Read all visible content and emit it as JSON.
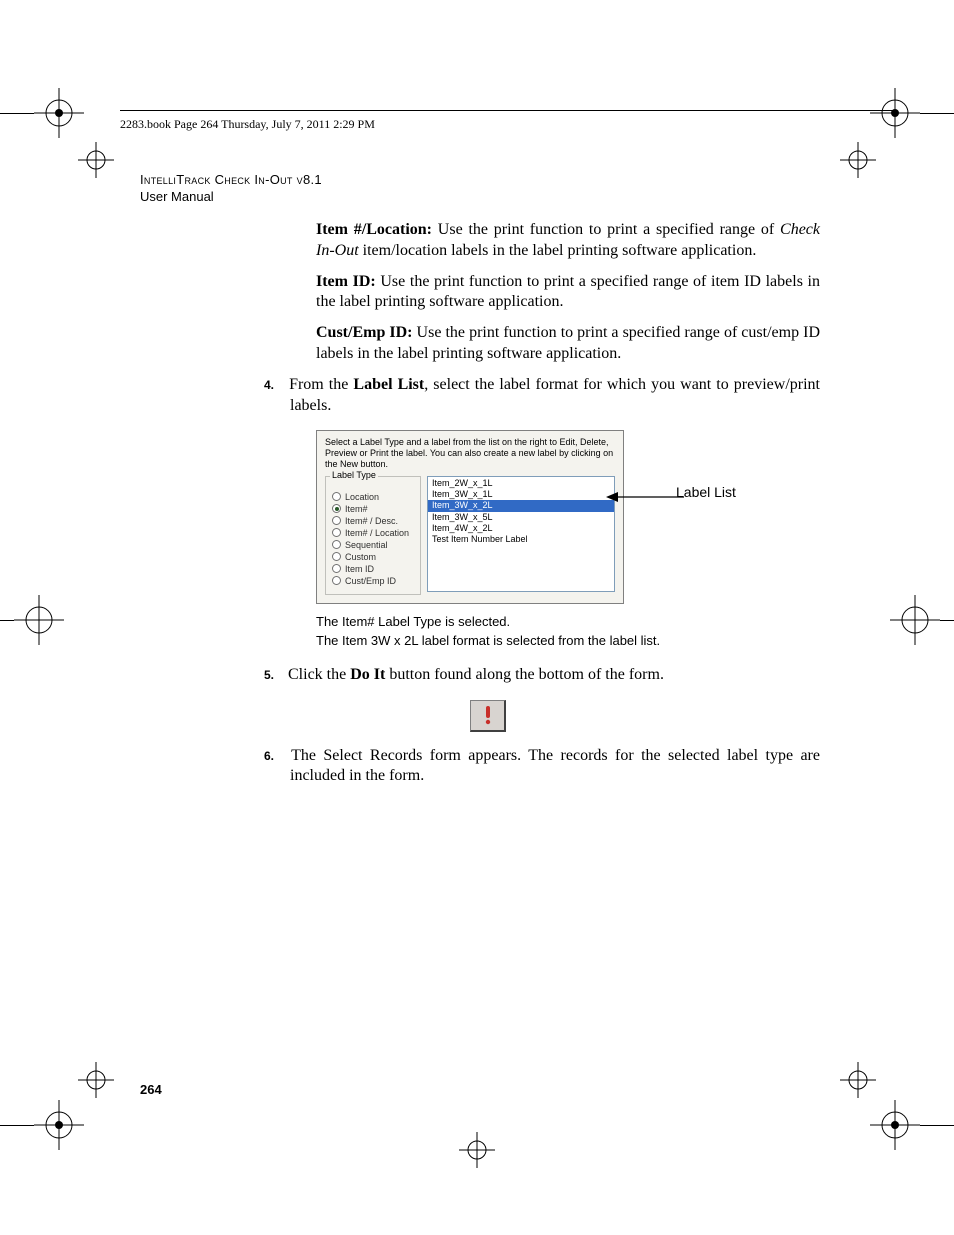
{
  "header": {
    "text": "2283.book  Page 264  Thursday, July 7, 2011  2:29 PM"
  },
  "doc": {
    "title_line1": "IntelliTrack Check In-Out v8.1",
    "title_line2": "User Manual"
  },
  "para1": {
    "lead": "Item #/Location:",
    "rest1": " Use the print function to print a specified range of ",
    "ital": "Check In-Out",
    "rest2": " item/location labels in the label printing software application."
  },
  "para2": {
    "lead": "Item ID:",
    "rest": " Use the print function to print a specified range of item ID labels in the label printing software application."
  },
  "para3": {
    "lead": "Cust/Emp ID:",
    "rest": " Use the print function to print a specified range of cust/emp ID labels in the label printing software application."
  },
  "step4": {
    "num": "4.",
    "t1": "From the ",
    "b1": "Label List",
    "t2": ", select the label format for which you want to preview/print labels."
  },
  "dialog": {
    "instruction": "Select a Label Type and a label from the list on the right to Edit, Delete, Preview or Print the label. You can also create a new label by clicking on the New button.",
    "legend": "Label Type",
    "radios": [
      {
        "label": "Location",
        "selected": false
      },
      {
        "label": "Item#",
        "selected": true
      },
      {
        "label": "Item# / Desc.",
        "selected": false
      },
      {
        "label": "Item# / Location",
        "selected": false
      },
      {
        "label": "Sequential",
        "selected": false
      },
      {
        "label": "Custom",
        "selected": false
      },
      {
        "label": "Item ID",
        "selected": false
      },
      {
        "label": "Cust/Emp ID",
        "selected": false
      }
    ],
    "list": [
      {
        "label": "Item_2W_x_1L",
        "selected": false
      },
      {
        "label": "Item_3W_x_1L",
        "selected": false
      },
      {
        "label": "Item_3W_x_2L",
        "selected": true
      },
      {
        "label": "Item_3W_x_5L",
        "selected": false
      },
      {
        "label": "Item_4W_x_2L",
        "selected": false
      },
      {
        "label": "Test Item Number Label",
        "selected": false
      }
    ]
  },
  "callout": "Label List",
  "captions": {
    "c1": "The Item# Label Type is selected.",
    "c2": "The Item 3W x 2L label format is selected from the label list."
  },
  "step5": {
    "num": "5.",
    "t1": "Click the ",
    "b1": "Do It",
    "t2": " button found along the bottom of the form."
  },
  "step6": {
    "num": "6.",
    "text": "The Select Records form appears. The records for the selected label type are included in the form."
  },
  "page_number": "264",
  "colors": {
    "selection_bg": "#316ac5",
    "dialog_bg": "#f4f3ee",
    "doit_red": "#c8302a"
  }
}
